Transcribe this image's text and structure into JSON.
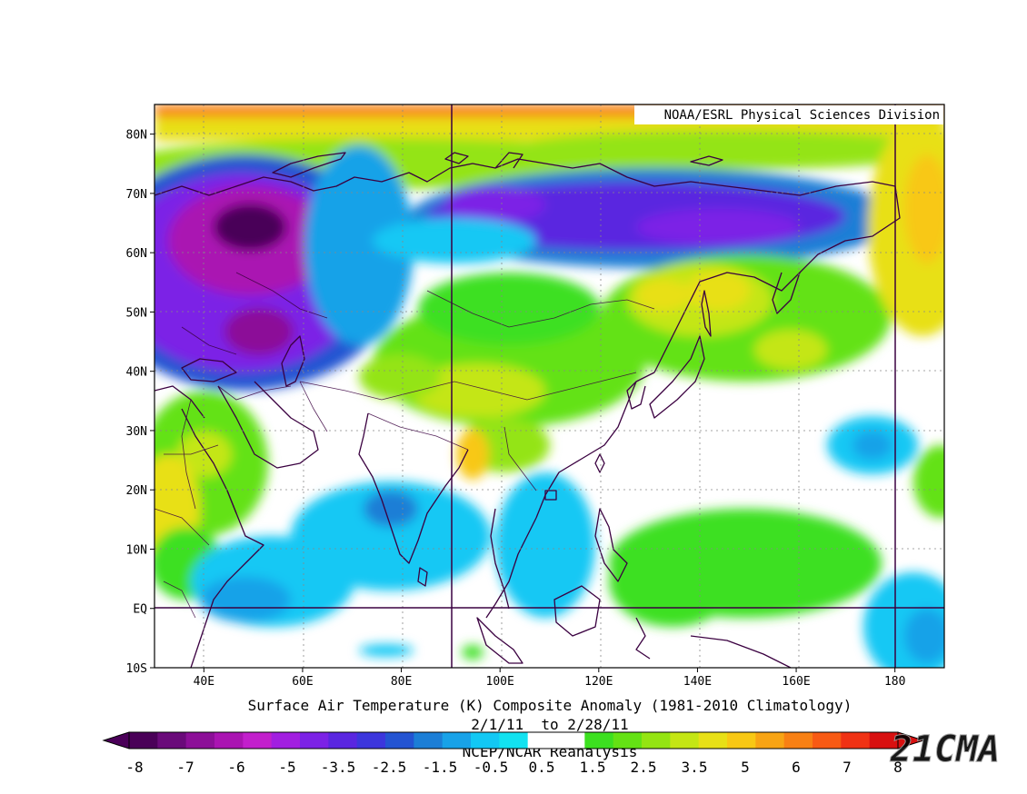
{
  "source_label": "NOAA/ESRL Physical Sciences Division",
  "title": "Surface Air Temperature (K) Composite Anomaly (1981-2010 Climatology)",
  "date_range": "2/1/11  to 2/28/11",
  "dataset": "NCEP/NCAR Reanalysis",
  "watermark": "21CMA",
  "map": {
    "lon_range": [
      30,
      190
    ],
    "lat_range": [
      -10,
      85
    ],
    "lon_ticks": [
      {
        "lon": 40,
        "label": "40E"
      },
      {
        "lon": 60,
        "label": "60E"
      },
      {
        "lon": 80,
        "label": "80E"
      },
      {
        "lon": 100,
        "label": "100E"
      },
      {
        "lon": 120,
        "label": "120E"
      },
      {
        "lon": 140,
        "label": "140E"
      },
      {
        "lon": 160,
        "label": "160E"
      },
      {
        "lon": 180,
        "label": "180"
      }
    ],
    "lat_ticks": [
      {
        "lat": 80,
        "label": "80N"
      },
      {
        "lat": 70,
        "label": "70N"
      },
      {
        "lat": 60,
        "label": "60N"
      },
      {
        "lat": 50,
        "label": "50N"
      },
      {
        "lat": 40,
        "label": "40N"
      },
      {
        "lat": 30,
        "label": "30N"
      },
      {
        "lat": 20,
        "label": "20N"
      },
      {
        "lat": 10,
        "label": "10N"
      },
      {
        "lat": 0,
        "label": "EQ"
      },
      {
        "lat": -10,
        "label": "10S"
      }
    ],
    "reference_lines": {
      "lon": [
        90,
        180
      ],
      "lat": [
        0
      ]
    }
  },
  "colorbar": {
    "labels": [
      "-8",
      "-7",
      "-6",
      "-5",
      "-3.5",
      "-2.5",
      "-1.5",
      "-0.5",
      "0.5",
      "1.5",
      "2.5",
      "3.5",
      "5",
      "6",
      "7",
      "8"
    ],
    "colors": [
      "#4a0058",
      "#6a0a7a",
      "#8c0f98",
      "#aa14b2",
      "#c21fcc",
      "#a21ee0",
      "#7c22e6",
      "#5a26e0",
      "#3c36dc",
      "#2454d2",
      "#1c7ed6",
      "#18a2e8",
      "#12c8f4",
      "#12e2f0",
      "#ffffff",
      "#ffffff",
      "#3ce020",
      "#64e214",
      "#94e412",
      "#c4e614",
      "#e8e016",
      "#f8c814",
      "#f8a414",
      "#f88014",
      "#f85a14",
      "#f03214",
      "#d81010"
    ]
  }
}
